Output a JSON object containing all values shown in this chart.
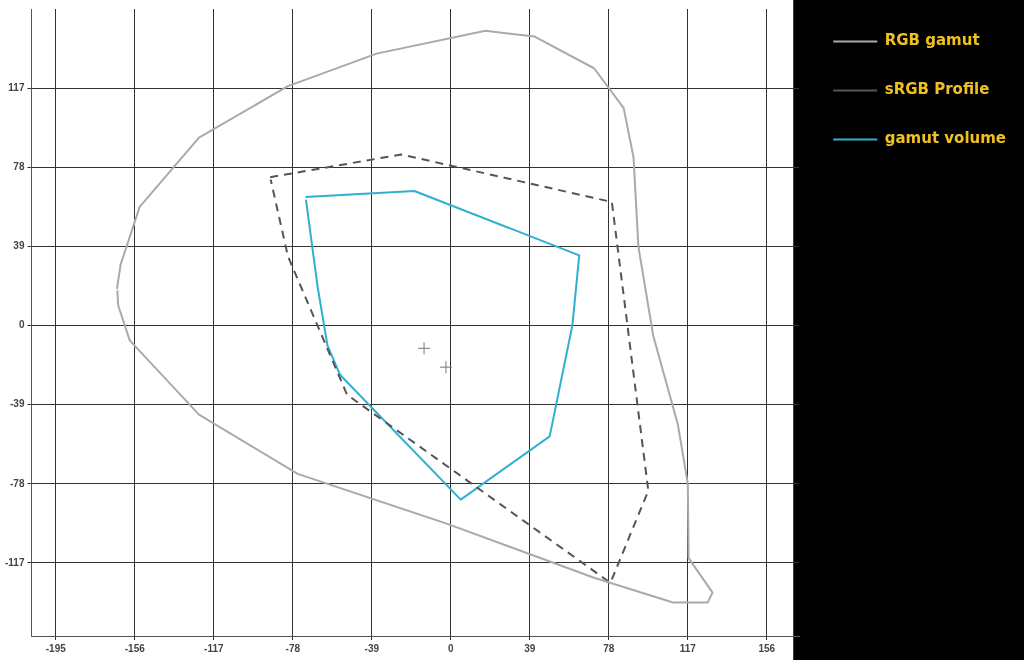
{
  "chart_data": {
    "type": "line",
    "xlim": [
      -207,
      172
    ],
    "ylim": [
      -153,
      156
    ],
    "xticks": [
      -195,
      -156,
      -117,
      -78,
      -39,
      0,
      39,
      78,
      117,
      156
    ],
    "yticks": [
      -117,
      -78,
      -39,
      0,
      39,
      78,
      117
    ],
    "grid": true,
    "legend": "right",
    "marker": "none",
    "series": [
      {
        "name": "RGB gamut",
        "type": "line",
        "color": "#aaaaaa",
        "line_style": "solid",
        "x": [
          -164.8,
          -163,
          -153.6,
          -124.3,
          -80.4,
          -36.6,
          17.1,
          41.4,
          70.7,
          85.3,
          90.2,
          92.6,
          99.9,
          112.1,
          117,
          117.4,
          129.2,
          126.8,
          109.7,
          70.7,
          -2.4,
          -75.6,
          -124.3,
          -158.5,
          -164.2,
          -164.6
        ],
        "values": [
          18,
          30,
          58.5,
          92.6,
          118,
          134,
          145.3,
          142.4,
          126.8,
          107.3,
          82.9,
          39,
          -4.9,
          -48.8,
          -78,
          -114.6,
          -131.6,
          -136.5,
          -136.5,
          -124.3,
          -97.5,
          -73.1,
          -43.9,
          -7.3,
          10,
          17.4
        ]
      },
      {
        "name": "sRGB Profile",
        "type": "line",
        "color": "#555555",
        "line_style": "dashed",
        "x": [
          -89.2,
          -24.4,
          79.5,
          97.5,
          78.8,
          -51.2,
          -80.4,
          -88.9
        ],
        "values": [
          73.1,
          84.3,
          60.9,
          -81.4,
          -126.8,
          -34.1,
          34.1,
          71.9
        ]
      },
      {
        "name": "gamut volume",
        "type": "line",
        "color": "#30b0d0",
        "line_style": "solid",
        "x": [
          -71.7,
          -18,
          63.4,
          60,
          48.8,
          4.9,
          -54.6,
          -60.9,
          -65.8,
          -71.5
        ],
        "values": [
          63.4,
          66.3,
          34.6,
          0,
          -54.6,
          -85.8,
          -24.4,
          -9.8,
          19.5,
          62
        ]
      },
      {
        "type": "scatter",
        "marker": "cross",
        "color": "#777777",
        "x": [
          -13.2,
          -2.4
        ],
        "values": [
          -11.2,
          -20.5
        ]
      }
    ]
  }
}
